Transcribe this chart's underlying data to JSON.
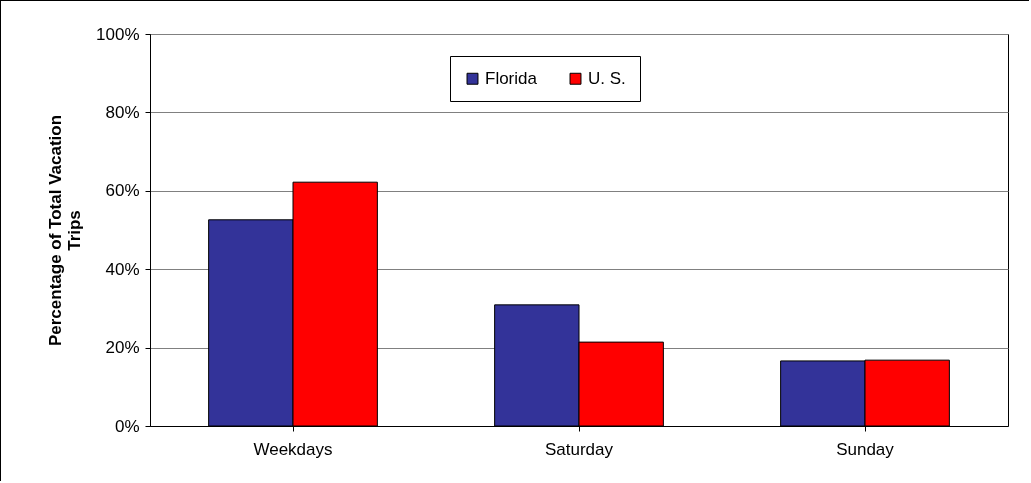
{
  "chart_data": {
    "type": "bar",
    "ylabel": "Percentage of Total Vacation Trips",
    "categories": [
      "Weekdays",
      "Saturday",
      "Sunday"
    ],
    "series": [
      {
        "name": "Florida",
        "color": "#333399",
        "values": [
          52.6,
          30.9,
          16.6
        ]
      },
      {
        "name": "U. S.",
        "color": "#ff0000",
        "values": [
          62.2,
          21.4,
          16.8
        ]
      }
    ],
    "ylim": [
      0,
      100
    ],
    "yticks": [
      {
        "value": 0,
        "label": "0%"
      },
      {
        "value": 20,
        "label": "20%"
      },
      {
        "value": 40,
        "label": "40%"
      },
      {
        "value": 60,
        "label": "60%"
      },
      {
        "value": 80,
        "label": "80%"
      },
      {
        "value": 100,
        "label": "100%"
      }
    ],
    "grid": "y",
    "legend": "top"
  }
}
